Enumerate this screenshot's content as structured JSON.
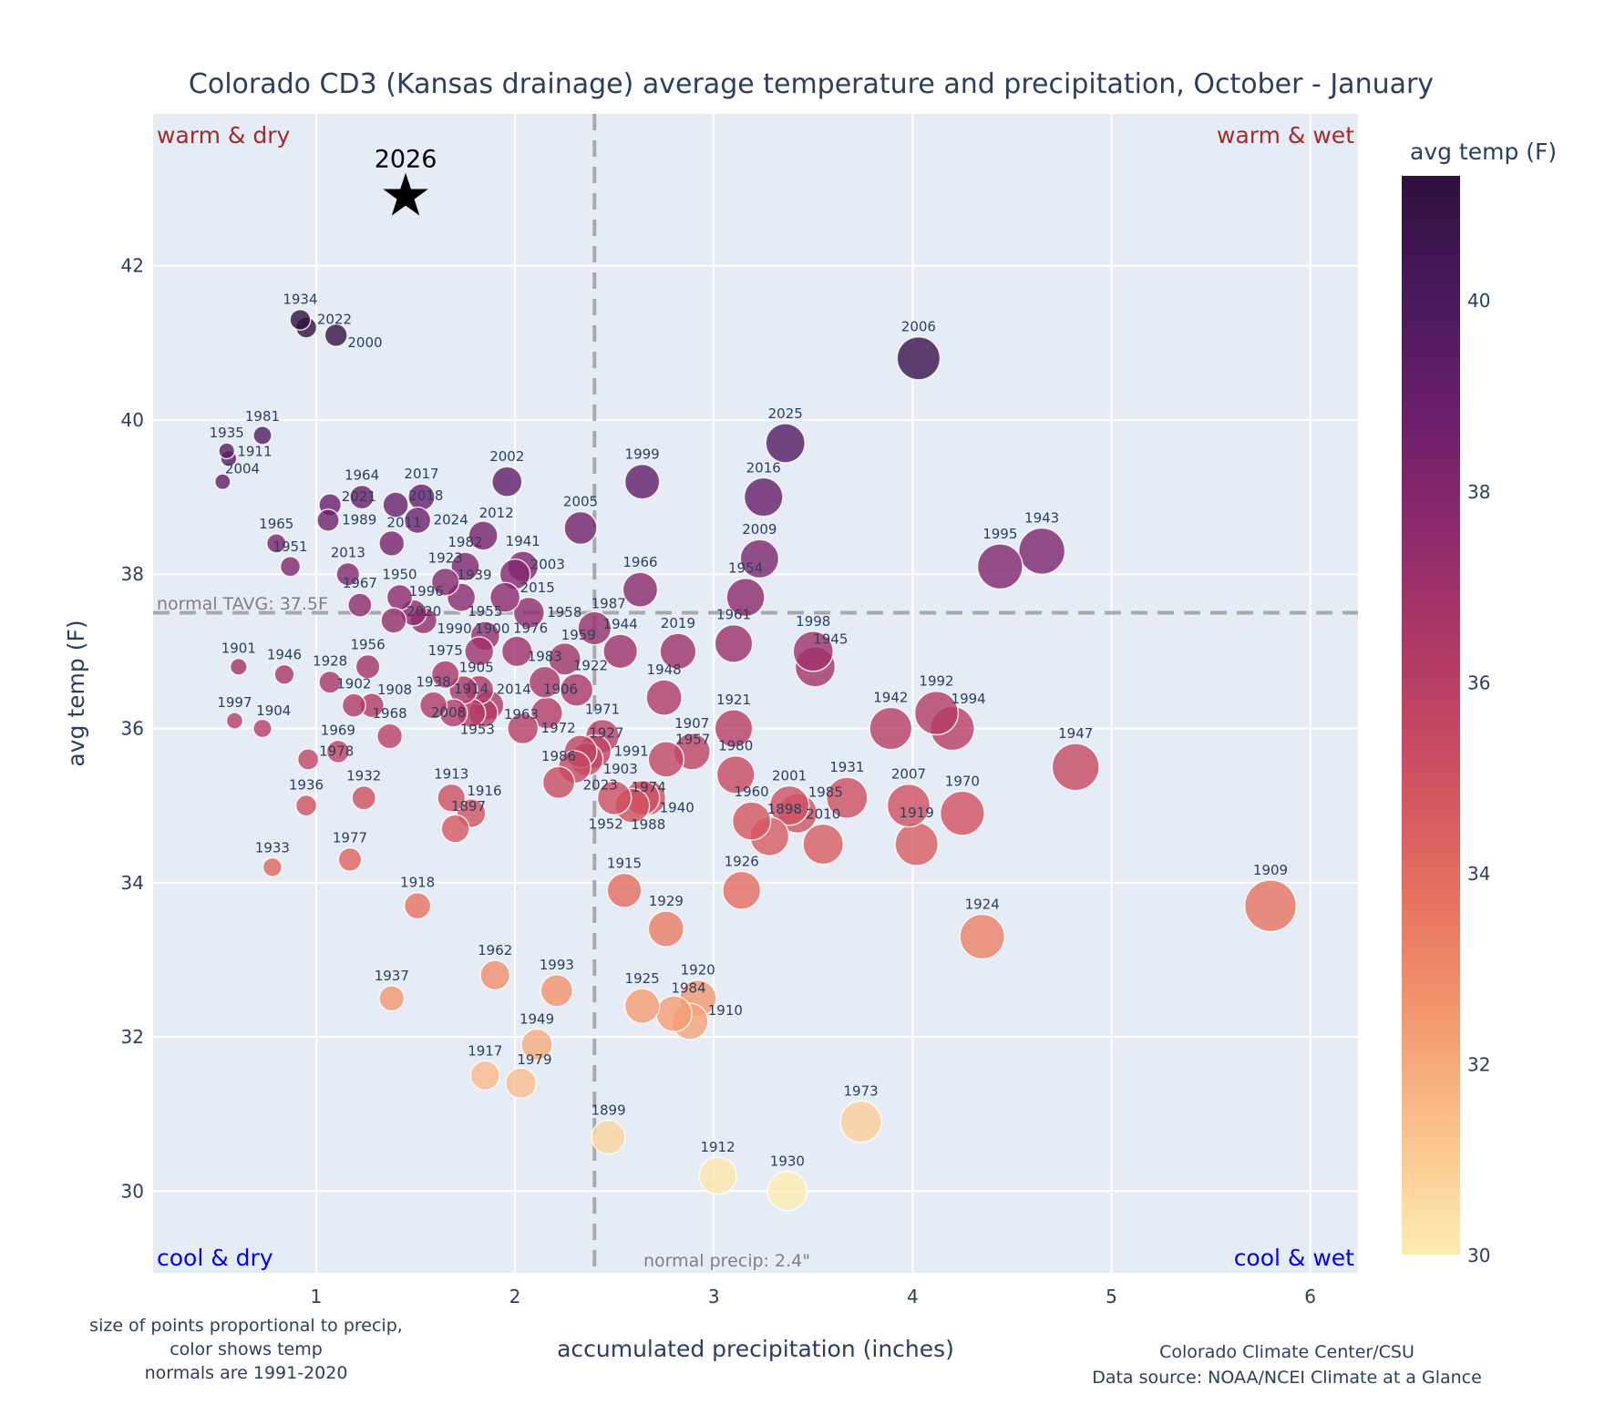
{
  "chart_data": {
    "type": "scatter",
    "title": "Colorado CD3 (Kansas drainage) average temperature and precipitation, October - January",
    "xlabel": "accumulated precipitation (inches)",
    "ylabel": "avg temp (F)",
    "xlim": [
      0.18,
      6.24
    ],
    "ylim": [
      28.94,
      43.97
    ],
    "xticks": [
      1,
      2,
      3,
      4,
      5,
      6
    ],
    "yticks": [
      30,
      32,
      34,
      36,
      38,
      40,
      42
    ],
    "grid": true,
    "colorbar": {
      "title": "avg temp (F)",
      "range": [
        30,
        41.3
      ],
      "ticks": [
        30,
        32,
        34,
        36,
        38,
        40
      ],
      "colors": [
        "#fdedb0",
        "#fac28f",
        "#f3976f",
        "#e5715f",
        "#cf5060",
        "#b13a66",
        "#8f2b6b",
        "#6b1f6b",
        "#491a5d",
        "#2f0f3d"
      ]
    },
    "normals": {
      "temp": 37.5,
      "precip": 2.4,
      "temp_label": "normal TAVG: 37.5F",
      "precip_label": "normal precip: 2.4\""
    },
    "quadrants": {
      "top_left": "warm & dry",
      "top_right": "warm & wet",
      "bottom_left": "cool & dry",
      "bottom_right": "cool & wet",
      "warm_color": "#a52a2a",
      "cool_color": "#0000ff"
    },
    "highlight": {
      "label": "2026",
      "precip": 1.45,
      "temp": 42.9,
      "marker": "star"
    },
    "points": [
      [
        1934,
        0.92,
        41.3
      ],
      [
        2022,
        0.95,
        41.2
      ],
      [
        2000,
        1.1,
        41.1
      ],
      [
        1981,
        0.73,
        39.8
      ],
      [
        1935,
        0.55,
        39.6
      ],
      [
        1911,
        0.56,
        39.5
      ],
      [
        2004,
        0.53,
        39.2
      ],
      [
        2021,
        1.07,
        38.9
      ],
      [
        1989,
        1.06,
        38.7
      ],
      [
        1964,
        1.23,
        39.0
      ],
      [
        2018,
        1.4,
        38.9
      ],
      [
        2017,
        1.53,
        39.0
      ],
      [
        2024,
        1.51,
        38.7
      ],
      [
        2011,
        1.38,
        38.4
      ],
      [
        2002,
        1.96,
        39.2
      ],
      [
        2012,
        1.84,
        38.5
      ],
      [
        1965,
        0.8,
        38.4
      ],
      [
        1951,
        0.87,
        38.1
      ],
      [
        2013,
        1.16,
        38.0
      ],
      [
        1967,
        1.22,
        37.6
      ],
      [
        1950,
        1.42,
        37.7
      ],
      [
        1996,
        1.49,
        37.5
      ],
      [
        2020,
        1.39,
        37.4
      ],
      [
        1990,
        1.54,
        37.4
      ],
      [
        1923,
        1.65,
        37.9
      ],
      [
        1982,
        1.75,
        38.1
      ],
      [
        1939,
        1.73,
        37.7
      ],
      [
        2015,
        1.95,
        37.7
      ],
      [
        1941,
        2.04,
        38.1
      ],
      [
        2003,
        2.0,
        38.0
      ],
      [
        1958,
        2.07,
        37.5
      ],
      [
        1955,
        1.85,
        37.2
      ],
      [
        1900,
        1.82,
        37.0
      ],
      [
        1976,
        2.01,
        37.0
      ],
      [
        1959,
        2.25,
        36.9
      ],
      [
        1987,
        2.4,
        37.3
      ],
      [
        1944,
        2.53,
        37.0
      ],
      [
        1966,
        2.63,
        37.8
      ],
      [
        1983,
        2.15,
        36.6
      ],
      [
        1922,
        2.31,
        36.5
      ],
      [
        1906,
        2.16,
        36.2
      ],
      [
        1972,
        2.04,
        36.0
      ],
      [
        1971,
        2.44,
        35.9
      ],
      [
        1927,
        2.33,
        35.7
      ],
      [
        1991,
        2.4,
        35.7
      ],
      [
        1903,
        2.36,
        35.6
      ],
      [
        2023,
        2.3,
        35.5
      ],
      [
        1986,
        2.22,
        35.3
      ],
      [
        1948,
        2.75,
        36.4
      ],
      [
        2019,
        2.82,
        37.0
      ],
      [
        1957,
        2.76,
        35.6
      ],
      [
        1907,
        2.89,
        35.7
      ],
      [
        1974,
        2.5,
        35.1
      ],
      [
        1952,
        2.59,
        35.0
      ],
      [
        1940,
        2.64,
        35.1
      ],
      [
        1988,
        2.67,
        35.1
      ],
      [
        1915,
        2.55,
        33.9
      ],
      [
        1929,
        2.76,
        33.4
      ],
      [
        1925,
        2.64,
        32.4
      ],
      [
        1984,
        2.8,
        32.3
      ],
      [
        1910,
        2.88,
        32.2
      ],
      [
        1920,
        2.92,
        32.5
      ],
      [
        1899,
        2.47,
        30.7
      ],
      [
        1912,
        3.02,
        30.2
      ],
      [
        1930,
        3.37,
        30.0
      ],
      [
        1973,
        3.74,
        30.9
      ],
      [
        1924,
        4.35,
        33.3
      ],
      [
        1909,
        5.8,
        33.7
      ],
      [
        1947,
        4.82,
        35.5
      ],
      [
        1970,
        4.25,
        34.9
      ],
      [
        1919,
        4.02,
        34.5
      ],
      [
        2007,
        3.98,
        35.0
      ],
      [
        1942,
        3.89,
        36.0
      ],
      [
        1992,
        4.12,
        36.2
      ],
      [
        1994,
        4.2,
        36.0
      ],
      [
        1931,
        3.67,
        35.1
      ],
      [
        2010,
        3.55,
        34.5
      ],
      [
        2001,
        3.38,
        35.0
      ],
      [
        1985,
        3.42,
        34.9
      ],
      [
        1898,
        3.28,
        34.6
      ],
      [
        1960,
        3.19,
        34.8
      ],
      [
        1980,
        3.11,
        35.4
      ],
      [
        1921,
        3.1,
        36.0
      ],
      [
        1926,
        3.14,
        33.9
      ],
      [
        1961,
        3.1,
        37.1
      ],
      [
        1954,
        3.16,
        37.7
      ],
      [
        2009,
        3.23,
        38.2
      ],
      [
        2016,
        3.25,
        39.0
      ],
      [
        2025,
        3.36,
        39.7
      ],
      [
        2006,
        4.03,
        40.8
      ],
      [
        1999,
        2.64,
        39.2
      ],
      [
        2005,
        2.33,
        38.6
      ],
      [
        1998,
        3.5,
        37.0
      ],
      [
        1945,
        3.51,
        36.8
      ],
      [
        1995,
        4.44,
        38.1
      ],
      [
        1943,
        4.65,
        38.3
      ],
      [
        1901,
        0.61,
        36.8
      ],
      [
        1946,
        0.84,
        36.7
      ],
      [
        1928,
        1.07,
        36.6
      ],
      [
        1997,
        0.59,
        36.1
      ],
      [
        1904,
        0.73,
        36.0
      ],
      [
        1956,
        1.26,
        36.8
      ],
      [
        1902,
        1.19,
        36.3
      ],
      [
        1908,
        1.28,
        36.3
      ],
      [
        1968,
        1.37,
        35.9
      ],
      [
        1969,
        1.11,
        35.7
      ],
      [
        1978,
        0.96,
        35.6
      ],
      [
        1936,
        0.95,
        35.0
      ],
      [
        1932,
        1.24,
        35.1
      ],
      [
        1933,
        0.78,
        34.2
      ],
      [
        1977,
        1.17,
        34.3
      ],
      [
        1918,
        1.51,
        33.7
      ],
      [
        1937,
        1.38,
        32.5
      ],
      [
        1962,
        1.9,
        32.8
      ],
      [
        1993,
        2.21,
        32.6
      ],
      [
        1949,
        2.11,
        31.9
      ],
      [
        1917,
        1.85,
        31.5
      ],
      [
        1979,
        2.03,
        31.4
      ],
      [
        1913,
        1.68,
        35.1
      ],
      [
        1916,
        1.78,
        34.9
      ],
      [
        1897,
        1.7,
        34.7
      ],
      [
        1975,
        1.65,
        36.7
      ],
      [
        1905,
        1.74,
        36.5
      ],
      [
        2014,
        1.82,
        36.5
      ],
      [
        1938,
        1.59,
        36.3
      ],
      [
        1953,
        1.69,
        36.2
      ],
      [
        1914,
        1.78,
        36.2
      ],
      [
        2008,
        1.84,
        36.2
      ],
      [
        1963,
        1.87,
        36.3
      ]
    ],
    "footnote_left": [
      "size of points proportional to precip,",
      "color shows temp",
      "normals are 1991-2020"
    ],
    "footnote_right": [
      "Colorado Climate Center/CSU",
      "Data source: NOAA/NCEI Climate at a Glance"
    ]
  }
}
